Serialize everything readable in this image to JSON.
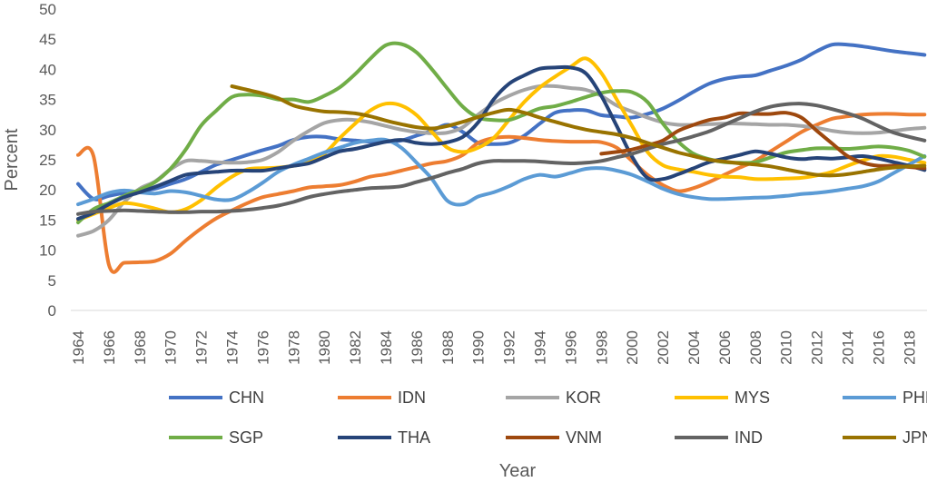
{
  "chart_data": {
    "type": "line",
    "title": "",
    "xlabel": "Year",
    "ylabel": "Percent",
    "ylim": [
      0,
      50
    ],
    "yticks": [
      "0",
      "5",
      "10",
      "15",
      "20",
      "25",
      "30",
      "35",
      "40",
      "45",
      "50"
    ],
    "xlim": [
      1964,
      2019
    ],
    "xticks": [
      "1964",
      "1966",
      "1968",
      "1970",
      "1972",
      "1974",
      "1976",
      "1978",
      "1980",
      "1982",
      "1984",
      "1986",
      "1988",
      "1990",
      "1992",
      "1994",
      "1996",
      "1998",
      "2000",
      "2002",
      "2004",
      "2006",
      "2008",
      "2010",
      "2012",
      "2014",
      "2016",
      "2018"
    ],
    "grid": false,
    "legend_position": "bottom",
    "series": [
      {
        "name": "CHN",
        "color": "#4472C4",
        "start": 1964,
        "values": [
          21.0,
          18.5,
          19.0,
          19.5,
          19.8,
          20.2,
          21.0,
          21.8,
          23.0,
          24.2,
          25.0,
          25.8,
          26.6,
          27.3,
          28.3,
          28.8,
          28.8,
          28.4,
          28.2,
          28.0,
          28.0,
          28.2,
          29.0,
          29.8,
          30.8,
          29.6,
          27.8,
          27.6,
          27.8,
          29.0,
          31.0,
          32.8,
          33.2,
          33.2,
          32.4,
          32.2,
          32.0,
          32.6,
          33.5,
          34.8,
          36.3,
          37.6,
          38.4,
          38.8,
          39.0,
          39.8,
          40.6,
          41.6,
          43.0,
          44.1,
          44.1,
          43.8,
          43.4,
          43.0,
          42.7,
          42.4
        ]
      },
      {
        "name": "IDN",
        "color": "#ED7D31",
        "start": 1964,
        "values": [
          25.8,
          25.6,
          7.6,
          7.9,
          8.0,
          8.2,
          9.4,
          11.6,
          13.6,
          15.3,
          16.6,
          17.8,
          18.8,
          19.3,
          19.8,
          20.4,
          20.6,
          20.8,
          21.4,
          22.2,
          22.6,
          23.2,
          23.8,
          24.4,
          24.8,
          25.8,
          27.8,
          28.6,
          28.8,
          28.6,
          28.3,
          28.1,
          28.0,
          28.0,
          27.9,
          27.0,
          24.8,
          22.5,
          20.8,
          19.8,
          20.3,
          21.3,
          22.5,
          23.7,
          24.8,
          26.4,
          28.0,
          29.6,
          30.8,
          31.8,
          32.2,
          32.5,
          32.6,
          32.6,
          32.5,
          32.5
        ]
      },
      {
        "name": "KOR",
        "color": "#A5A5A5",
        "start": 1964,
        "values": [
          12.4,
          13.2,
          15.0,
          18.0,
          20.2,
          21.4,
          23.4,
          24.8,
          24.8,
          24.6,
          24.5,
          24.6,
          25.0,
          26.3,
          28.2,
          29.8,
          31.1,
          31.6,
          31.6,
          31.2,
          30.6,
          30.0,
          29.6,
          29.4,
          29.5,
          30.4,
          32.5,
          34.3,
          35.6,
          36.6,
          37.2,
          37.2,
          36.9,
          36.6,
          35.6,
          34.0,
          33.0,
          32.0,
          31.2,
          30.8,
          30.8,
          30.9,
          31.0,
          31.0,
          30.9,
          30.8,
          30.8,
          30.6,
          30.3,
          29.8,
          29.5,
          29.4,
          29.5,
          29.8,
          30.1,
          30.3
        ]
      },
      {
        "name": "MYS",
        "color": "#FFC000",
        "start": 1964,
        "values": [
          15.0,
          16.0,
          17.0,
          17.8,
          17.5,
          16.9,
          16.3,
          16.8,
          18.3,
          20.4,
          22.2,
          23.4,
          23.6,
          23.7,
          24.0,
          24.6,
          26.0,
          28.6,
          31.0,
          33.2,
          34.3,
          34.0,
          32.4,
          29.6,
          27.0,
          26.3,
          27.0,
          28.6,
          31.6,
          34.6,
          37.0,
          38.8,
          40.4,
          41.8,
          39.4,
          35.0,
          30.6,
          26.3,
          24.1,
          23.4,
          23.0,
          22.5,
          22.2,
          22.1,
          21.8,
          21.8,
          21.9,
          22.0,
          22.4,
          23.0,
          24.0,
          24.9,
          25.6,
          25.5,
          25.0,
          24.5
        ]
      },
      {
        "name": "PHL",
        "color": "#5B9BD5",
        "start": 1964,
        "values": [
          17.6,
          18.5,
          19.5,
          19.9,
          19.6,
          19.4,
          19.8,
          19.6,
          19.0,
          18.4,
          18.4,
          19.6,
          21.2,
          23.0,
          24.2,
          25.2,
          26.2,
          27.0,
          27.8,
          28.2,
          28.3,
          27.0,
          24.5,
          21.8,
          18.2,
          17.6,
          18.9,
          19.6,
          20.6,
          21.8,
          22.5,
          22.2,
          22.8,
          23.5,
          23.6,
          23.2,
          22.5,
          21.4,
          20.2,
          19.3,
          18.8,
          18.5,
          18.5,
          18.6,
          18.7,
          18.8,
          19.0,
          19.3,
          19.5,
          19.8,
          20.2,
          20.6,
          21.4,
          22.8,
          24.2,
          25.6
        ]
      },
      {
        "name": "SGP",
        "color": "#70AD47",
        "start": 1964,
        "values": [
          14.6,
          16.8,
          17.8,
          19.0,
          20.0,
          21.3,
          23.5,
          26.7,
          30.7,
          33.2,
          35.4,
          35.8,
          35.6,
          35.0,
          35.0,
          34.6,
          35.6,
          37.0,
          39.2,
          41.8,
          44.0,
          44.2,
          42.8,
          40.0,
          36.8,
          33.8,
          32.0,
          31.6,
          31.6,
          32.5,
          33.5,
          33.9,
          34.6,
          35.4,
          36.1,
          36.4,
          36.2,
          34.6,
          31.0,
          28.0,
          26.0,
          25.1,
          24.6,
          24.5,
          24.6,
          25.4,
          26.2,
          26.6,
          26.9,
          26.9,
          26.8,
          27.0,
          27.2,
          27.0,
          26.5,
          25.5
        ]
      },
      {
        "name": "THA",
        "color": "#264478",
        "start": 1964,
        "values": [
          15.2,
          16.2,
          17.6,
          18.8,
          19.6,
          20.5,
          21.5,
          22.5,
          22.8,
          23.0,
          23.2,
          23.2,
          23.2,
          23.6,
          24.0,
          24.4,
          25.4,
          26.4,
          26.8,
          27.4,
          28.0,
          28.3,
          27.8,
          27.6,
          27.9,
          28.8,
          31.2,
          35.0,
          37.6,
          39.0,
          40.1,
          40.3,
          40.3,
          39.3,
          35.6,
          30.6,
          25.5,
          22.0,
          21.8,
          22.6,
          23.6,
          24.6,
          25.2,
          25.8,
          26.4,
          26.0,
          25.4,
          25.1,
          25.3,
          25.2,
          25.4,
          25.6,
          25.2,
          24.6,
          24.0,
          23.3
        ]
      },
      {
        "name": "VNM",
        "color": "#9E480E",
        "start": 1998,
        "values": [
          26.0,
          26.3,
          26.7,
          27.4,
          28.2,
          29.8,
          30.8,
          31.6,
          32.0,
          32.7,
          32.6,
          32.6,
          32.8,
          32.0,
          29.8,
          27.7,
          25.6,
          24.5,
          24.0,
          24.0,
          23.8,
          23.6
        ]
      },
      {
        "name": "IND",
        "color": "#636363",
        "start": 1964,
        "values": [
          16.0,
          16.4,
          16.5,
          16.6,
          16.5,
          16.4,
          16.3,
          16.3,
          16.4,
          16.4,
          16.5,
          16.7,
          17.0,
          17.4,
          18.0,
          18.8,
          19.3,
          19.7,
          20.0,
          20.3,
          20.4,
          20.6,
          21.3,
          22.0,
          22.8,
          23.5,
          24.4,
          24.8,
          24.8,
          24.8,
          24.7,
          24.5,
          24.4,
          24.5,
          24.8,
          25.4,
          26.0,
          26.8,
          27.6,
          28.2,
          28.9,
          29.7,
          30.8,
          31.9,
          33.0,
          33.8,
          34.2,
          34.3,
          34.0,
          33.4,
          32.7,
          31.8,
          30.6,
          29.5,
          28.8,
          28.2
        ]
      },
      {
        "name": "JPN",
        "color": "#997300",
        "start": 1974,
        "values": [
          37.2,
          36.6,
          36.0,
          35.2,
          34.0,
          33.4,
          33.0,
          32.9,
          32.7,
          32.2,
          31.5,
          30.9,
          30.4,
          30.2,
          30.6,
          31.3,
          32.1,
          32.8,
          33.3,
          32.8,
          32.0,
          31.3,
          30.6,
          30.0,
          29.6,
          29.2,
          28.6,
          27.8,
          27.0,
          26.2,
          25.6,
          25.0,
          24.7,
          24.4,
          24.2,
          23.9,
          23.4,
          22.9,
          22.5,
          22.4,
          22.6,
          23.0,
          23.4,
          23.7,
          23.9,
          24.0
        ]
      }
    ]
  }
}
